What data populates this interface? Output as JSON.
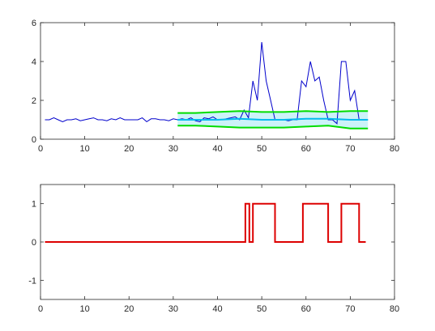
{
  "chart_data": [
    {
      "type": "line",
      "title": "",
      "xlabel": "",
      "ylabel": "",
      "xlim": [
        0,
        80
      ],
      "ylim": [
        0,
        6
      ],
      "xticks": [
        "0",
        "10",
        "20",
        "30",
        "40",
        "50",
        "60",
        "70",
        "80"
      ],
      "yticks": [
        "0",
        "2",
        "4",
        "6"
      ],
      "grid": false,
      "legend": "none",
      "series": [
        {
          "color": "#0000cc",
          "x": [
            1,
            2,
            3,
            4,
            5,
            6,
            7,
            8,
            9,
            10,
            11,
            12,
            13,
            14,
            15,
            16,
            17,
            18,
            19,
            20,
            21,
            22,
            23,
            24,
            25,
            26,
            27,
            28,
            29,
            30,
            31,
            32,
            33,
            34,
            35,
            36,
            37,
            38,
            39,
            40,
            41,
            42,
            43,
            44,
            45,
            46,
            47,
            48,
            49,
            50,
            51,
            52,
            53,
            54,
            55,
            56,
            57,
            58,
            59,
            60,
            61,
            62,
            63,
            64,
            65,
            66,
            67,
            68,
            69,
            70,
            71,
            72,
            73,
            74
          ],
          "y": [
            1.0,
            1.0,
            1.1,
            1.0,
            0.9,
            1.0,
            1.0,
            1.05,
            0.95,
            1.0,
            1.05,
            1.1,
            1.0,
            1.0,
            0.95,
            1.05,
            1.0,
            1.1,
            1.0,
            1.0,
            1.0,
            1.0,
            1.1,
            0.9,
            1.05,
            1.05,
            1.0,
            1.0,
            0.95,
            1.05,
            1.0,
            1.05,
            1.0,
            1.1,
            0.95,
            0.9,
            1.1,
            1.05,
            1.15,
            1.0,
            1.0,
            1.05,
            1.1,
            1.15,
            1.0,
            1.5,
            1.1,
            3.0,
            2.0,
            5.0,
            3.0,
            2.0,
            1.0,
            1.0,
            1.0,
            0.95,
            1.0,
            1.0,
            3.0,
            2.7,
            4.0,
            3.0,
            3.2,
            2.0,
            1.0,
            1.0,
            0.8,
            4.0,
            4.0,
            2.0,
            2.5,
            1.0,
            1.0,
            1.0
          ]
        },
        {
          "color": "#00dd00",
          "x": [
            31,
            35,
            40,
            45,
            50,
            55,
            60,
            65,
            70,
            74
          ],
          "y": [
            1.35,
            1.35,
            1.4,
            1.45,
            1.4,
            1.4,
            1.45,
            1.4,
            1.45,
            1.45
          ]
        },
        {
          "color": "#00dd00",
          "x": [
            31,
            35,
            40,
            45,
            50,
            55,
            60,
            65,
            70,
            74
          ],
          "y": [
            0.7,
            0.7,
            0.65,
            0.6,
            0.6,
            0.6,
            0.65,
            0.7,
            0.55,
            0.55
          ]
        },
        {
          "color": "#00bbee",
          "x": [
            31,
            35,
            40,
            45,
            50,
            55,
            60,
            65,
            70,
            74
          ],
          "y": [
            1.0,
            1.0,
            1.0,
            1.05,
            1.0,
            1.0,
            1.05,
            1.05,
            1.0,
            1.0
          ]
        }
      ],
      "band": {
        "fill": "#ccf2f9",
        "x": [
          31,
          35,
          40,
          45,
          50,
          55,
          60,
          65,
          70,
          74
        ],
        "upper": [
          1.35,
          1.35,
          1.4,
          1.45,
          1.4,
          1.4,
          1.45,
          1.4,
          1.45,
          1.45
        ],
        "lower": [
          0.7,
          0.7,
          0.65,
          0.6,
          0.6,
          0.6,
          0.65,
          0.7,
          0.55,
          0.55
        ]
      }
    },
    {
      "type": "line",
      "title": "",
      "xlabel": "",
      "ylabel": "",
      "xlim": [
        0,
        80
      ],
      "ylim": [
        -1.5,
        1.5
      ],
      "xticks": [
        "0",
        "10",
        "20",
        "30",
        "40",
        "50",
        "60",
        "70",
        "80"
      ],
      "yticks": [
        "-1",
        "0",
        "1"
      ],
      "grid": false,
      "legend": "none",
      "series": [
        {
          "color": "#dd0000",
          "step": true,
          "x": [
            1,
            46.3,
            46.3,
            47.2,
            47.2,
            48.0,
            48.0,
            53.0,
            53.0,
            59.3,
            59.3,
            65.0,
            65.0,
            68.0,
            68.0,
            72.0,
            72.0,
            73.5
          ],
          "y": [
            0,
            0,
            1,
            1,
            0,
            0,
            1,
            1,
            0,
            0,
            1,
            1,
            0,
            0,
            1,
            1,
            0,
            0
          ]
        }
      ]
    }
  ]
}
